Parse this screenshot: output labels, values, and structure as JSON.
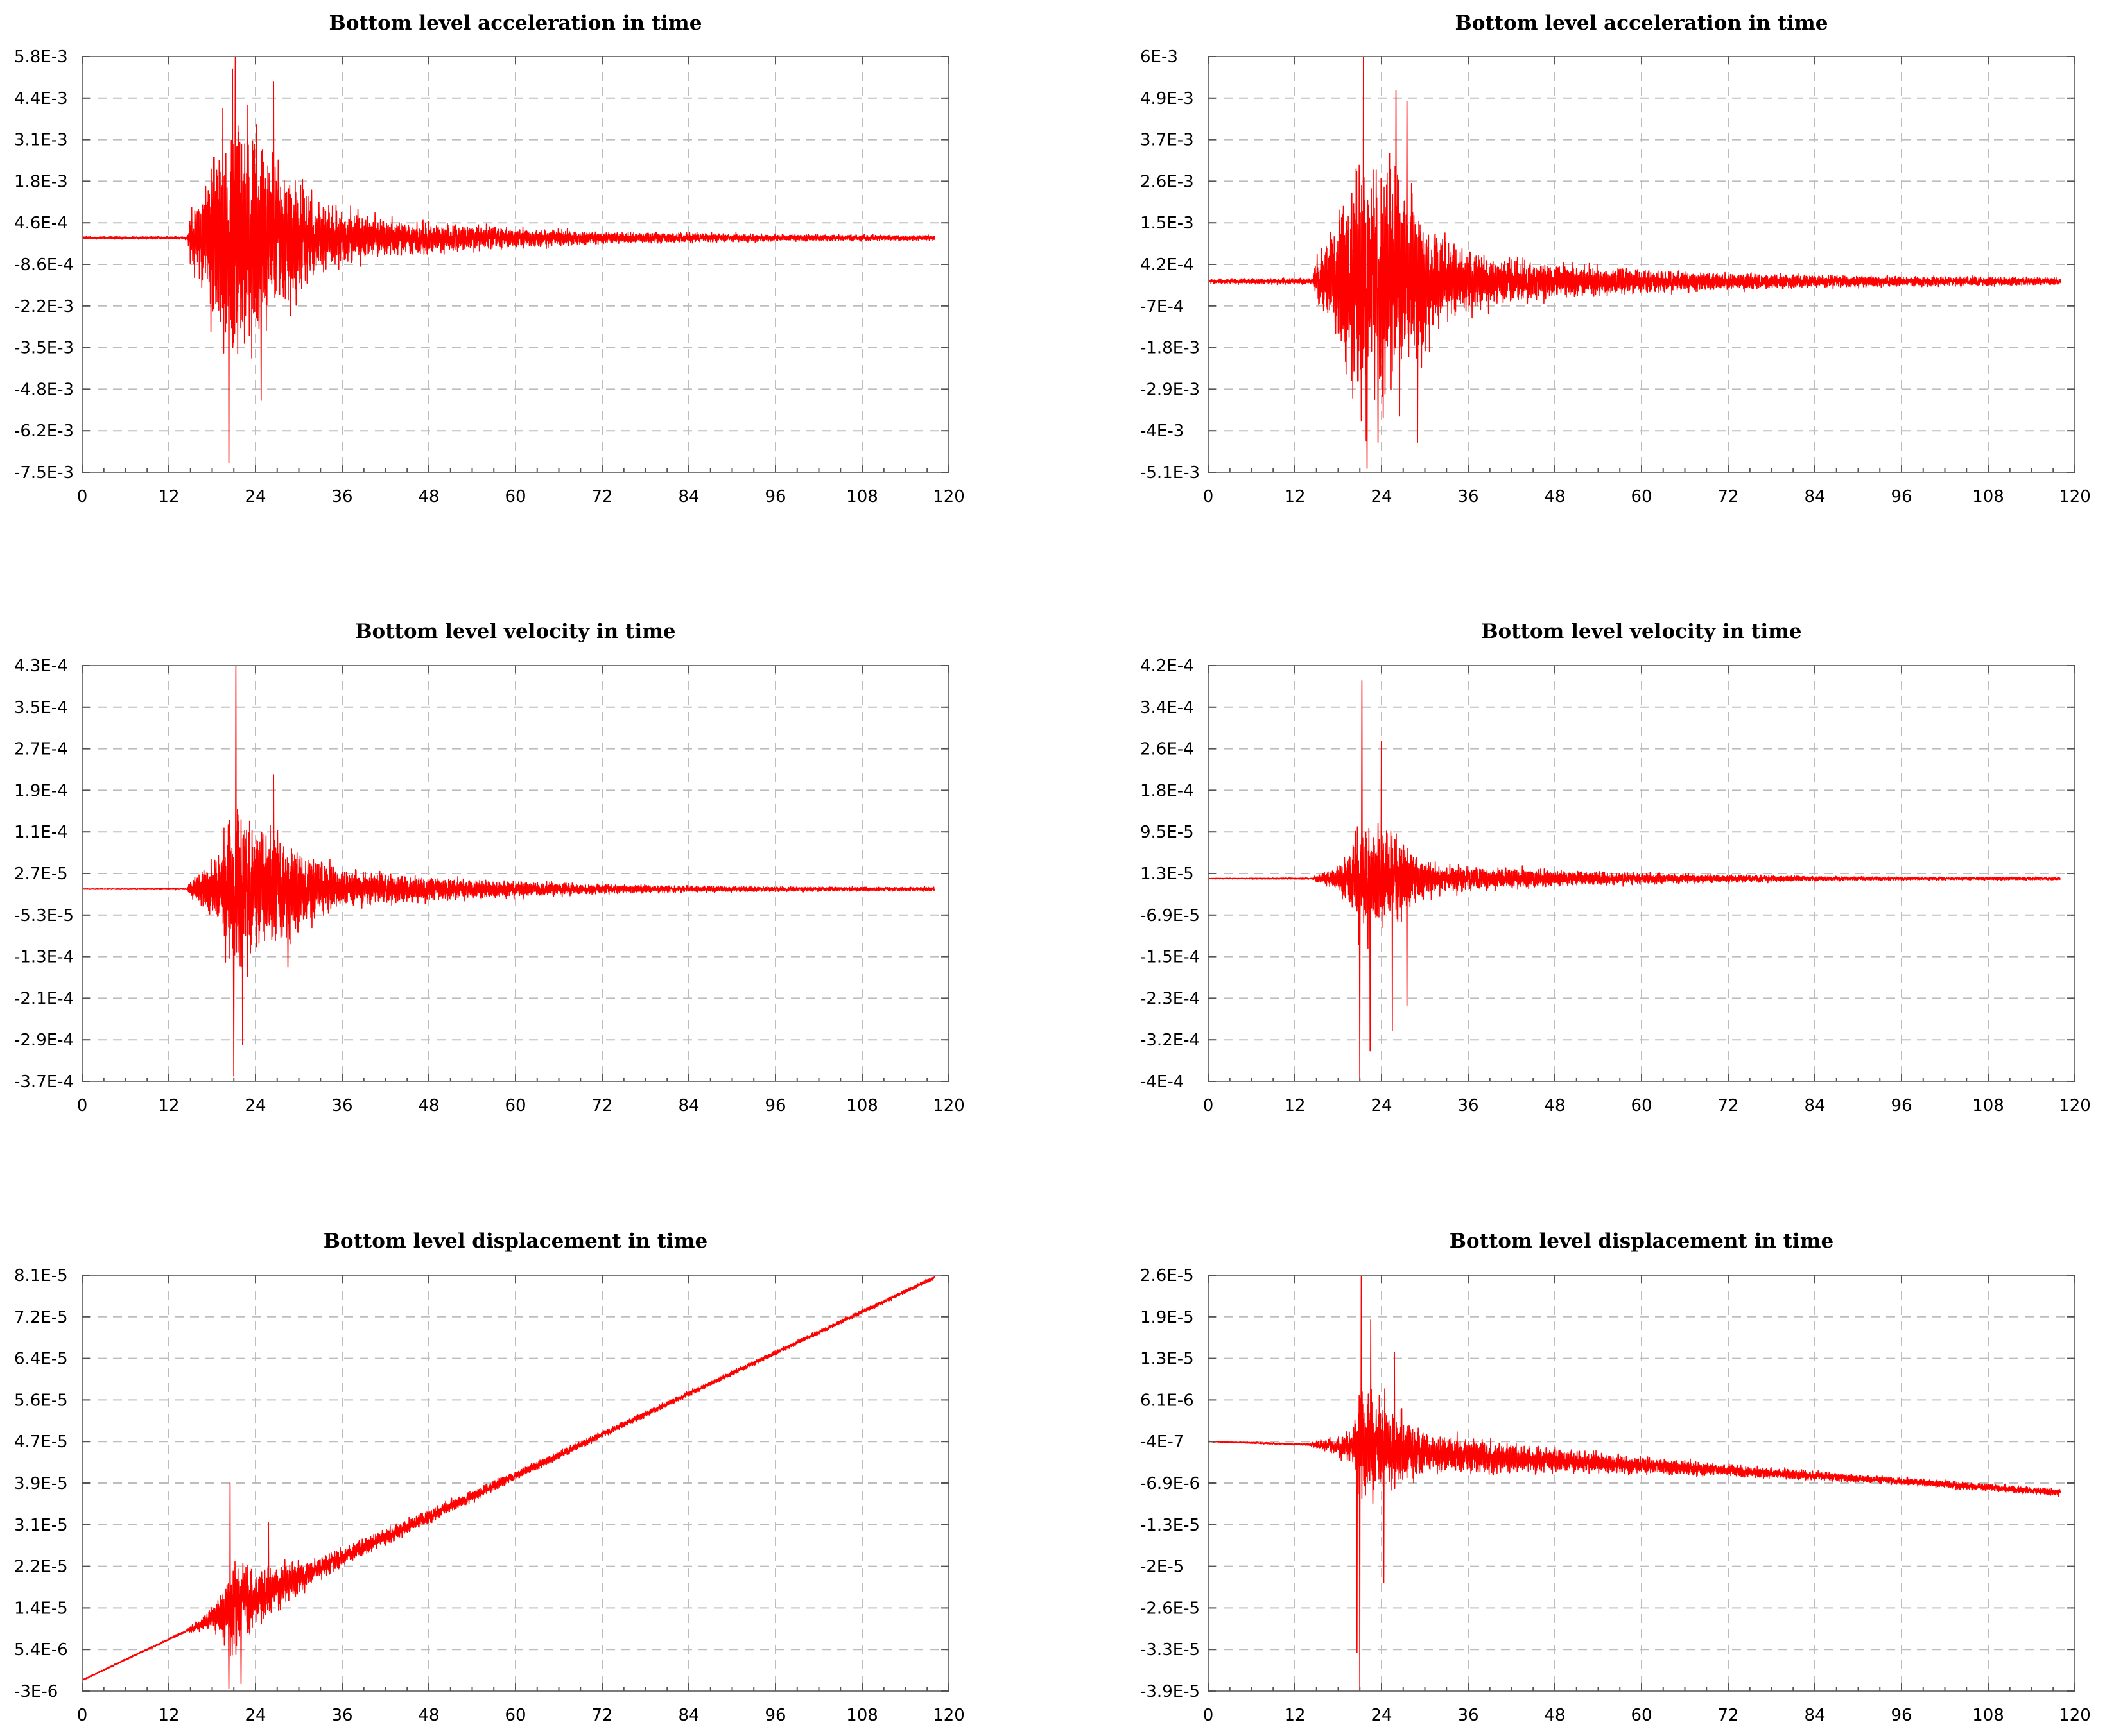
{
  "chart_data": [
    {
      "type": "line",
      "id": "acc-left",
      "title": "Bottom level acceleration in time",
      "xlabel": "",
      "ylabel": "",
      "xlim": [
        0,
        120
      ],
      "ylim": [
        -0.0075,
        0.0058
      ],
      "x_ticks": [
        "0",
        "12",
        "24",
        "36",
        "48",
        "60",
        "72",
        "84",
        "96",
        "108",
        "120"
      ],
      "y_ticks": [
        "5.8E-3",
        "4.4E-3",
        "3.1E-3",
        "1.8E-3",
        "4.6E-4",
        "-8.6E-4",
        "-2.2E-3",
        "-3.5E-3",
        "-4.8E-3",
        "-6.2E-3",
        "-7.5E-3"
      ],
      "grid": true,
      "series": [
        {
          "name": "acceleration",
          "color": "#ff0000",
          "envelope": [
            [
              0,
              5e-05
            ],
            [
              14.5,
              6e-05
            ],
            [
              15,
              0.0012
            ],
            [
              17,
              0.002
            ],
            [
              18,
              0.0037
            ],
            [
              19,
              0.0038
            ],
            [
              20,
              0.0052
            ],
            [
              21.5,
              0.0055
            ],
            [
              23,
              0.0048
            ],
            [
              25,
              0.0038
            ],
            [
              27,
              0.0032
            ],
            [
              29,
              0.0026
            ],
            [
              32,
              0.0016
            ],
            [
              36,
              0.0011
            ],
            [
              40,
              0.0009
            ],
            [
              45,
              0.0007
            ],
            [
              50,
              0.0006
            ],
            [
              60,
              0.0004
            ],
            [
              72,
              0.00025
            ],
            [
              84,
              0.0002
            ],
            [
              96,
              0.00015
            ],
            [
              108,
              0.00012
            ],
            [
              118,
              0.0001
            ]
          ],
          "offset": [
            [
              0,
              0.0
            ],
            [
              118,
              0.0
            ]
          ],
          "peaks": [
            [
              20.3,
              -0.0072
            ],
            [
              21.2,
              0.0058
            ],
            [
              20.8,
              0.0054
            ],
            [
              24.8,
              -0.0052
            ],
            [
              26.5,
              0.005
            ]
          ]
        }
      ]
    },
    {
      "type": "line",
      "id": "acc-right",
      "title": "Bottom level acceleration in time",
      "xlabel": "",
      "ylabel": "",
      "xlim": [
        0,
        120
      ],
      "ylim": [
        -0.0051,
        0.006
      ],
      "x_ticks": [
        "0",
        "12",
        "24",
        "36",
        "48",
        "60",
        "72",
        "84",
        "96",
        "108",
        "120"
      ],
      "y_ticks": [
        "6E-3",
        "4.9E-3",
        "3.7E-3",
        "2.6E-3",
        "1.5E-3",
        "4.2E-4",
        "-7E-4",
        "-1.8E-3",
        "-2.9E-3",
        "-4E-3",
        "-5.1E-3"
      ],
      "grid": true,
      "series": [
        {
          "name": "acceleration",
          "color": "#ff0000",
          "envelope": [
            [
              0,
              8e-05
            ],
            [
              14.5,
              0.0001
            ],
            [
              15,
              0.0009
            ],
            [
              18,
              0.0022
            ],
            [
              20,
              0.0042
            ],
            [
              21,
              0.0048
            ],
            [
              23,
              0.0042
            ],
            [
              25,
              0.0038
            ],
            [
              27,
              0.0036
            ],
            [
              29,
              0.003
            ],
            [
              32,
              0.0016
            ],
            [
              36,
              0.0011
            ],
            [
              40,
              0.0008
            ],
            [
              48,
              0.0006
            ],
            [
              60,
              0.0004
            ],
            [
              72,
              0.0003
            ],
            [
              84,
              0.00022
            ],
            [
              96,
              0.00018
            ],
            [
              108,
              0.00015
            ],
            [
              118,
              0.00012
            ]
          ],
          "offset": [
            [
              0,
              0.0
            ],
            [
              118,
              0.0
            ]
          ],
          "peaks": [
            [
              21.5,
              0.006
            ],
            [
              22,
              -0.005
            ],
            [
              23.5,
              -0.0043
            ],
            [
              26,
              0.0051
            ],
            [
              27.5,
              0.0048
            ],
            [
              29,
              -0.0043
            ]
          ]
        }
      ]
    },
    {
      "type": "line",
      "id": "vel-left",
      "title": "Bottom level velocity in time",
      "xlabel": "",
      "ylabel": "",
      "xlim": [
        0,
        120
      ],
      "ylim": [
        -0.00037,
        0.00043
      ],
      "x_ticks": [
        "0",
        "12",
        "24",
        "36",
        "48",
        "60",
        "72",
        "84",
        "96",
        "108",
        "120"
      ],
      "y_ticks": [
        "4.3E-4",
        "3.5E-4",
        "2.7E-4",
        "1.9E-4",
        "1.1E-4",
        "2.7E-5",
        "-5.3E-5",
        "-1.3E-4",
        "-2.1E-4",
        "-2.9E-4",
        "-3.7E-4"
      ],
      "grid": true,
      "series": [
        {
          "name": "velocity",
          "color": "#ff0000",
          "envelope": [
            [
              0,
              1e-06
            ],
            [
              14.5,
              2e-06
            ],
            [
              15,
              2e-05
            ],
            [
              17,
              5e-05
            ],
            [
              19,
              9e-05
            ],
            [
              20,
              0.00018
            ],
            [
              21,
              0.00022
            ],
            [
              23,
              0.00018
            ],
            [
              25,
              0.00016
            ],
            [
              27,
              0.00014
            ],
            [
              29,
              0.00012
            ],
            [
              32,
              8e-05
            ],
            [
              36,
              5e-05
            ],
            [
              40,
              4e-05
            ],
            [
              48,
              3e-05
            ],
            [
              60,
              2e-05
            ],
            [
              72,
              1.2e-05
            ],
            [
              84,
              8e-06
            ],
            [
              96,
              6e-06
            ],
            [
              118,
              5e-06
            ]
          ],
          "offset": [
            [
              0,
              0.0
            ],
            [
              118,
              0.0
            ]
          ],
          "peaks": [
            [
              21.3,
              0.00043
            ],
            [
              21.0,
              -0.00036
            ],
            [
              22.2,
              -0.0003
            ],
            [
              26.5,
              0.00022
            ],
            [
              28.5,
              -0.00015
            ]
          ]
        }
      ]
    },
    {
      "type": "line",
      "id": "vel-right",
      "title": "Bottom level velocity in time",
      "xlabel": "",
      "ylabel": "",
      "xlim": [
        0,
        120
      ],
      "ylim": [
        -0.0004,
        0.00042
      ],
      "x_ticks": [
        "0",
        "12",
        "24",
        "36",
        "48",
        "60",
        "72",
        "84",
        "96",
        "108",
        "120"
      ],
      "y_ticks": [
        "4.2E-4",
        "3.4E-4",
        "2.6E-4",
        "1.8E-4",
        "9.5E-5",
        "1.3E-5",
        "-6.9E-5",
        "-1.5E-4",
        "-2.3E-4",
        "-3.2E-4",
        "-4E-4"
      ],
      "grid": true,
      "series": [
        {
          "name": "velocity",
          "color": "#ff0000",
          "envelope": [
            [
              0,
              1e-06
            ],
            [
              14.5,
              2e-06
            ],
            [
              15,
              1e-05
            ],
            [
              18,
              3e-05
            ],
            [
              20,
              0.00011
            ],
            [
              21,
              0.00015
            ],
            [
              23,
              0.00014
            ],
            [
              25,
              0.00012
            ],
            [
              27,
              0.0001
            ],
            [
              29,
              6e-05
            ],
            [
              32,
              4e-05
            ],
            [
              36,
              3e-05
            ],
            [
              48,
              2e-05
            ],
            [
              60,
              1.5e-05
            ],
            [
              72,
              1e-05
            ],
            [
              84,
              6e-06
            ],
            [
              96,
              4e-06
            ],
            [
              118,
              4e-06
            ]
          ],
          "offset": [
            [
              0,
              0.0
            ],
            [
              118,
              0.0
            ]
          ],
          "peaks": [
            [
              21.3,
              0.00039
            ],
            [
              21.0,
              -0.0004
            ],
            [
              22.4,
              -0.00034
            ],
            [
              24.0,
              0.00027
            ],
            [
              25.5,
              -0.0003
            ],
            [
              27.5,
              -0.00025
            ]
          ]
        }
      ]
    },
    {
      "type": "line",
      "id": "disp-left",
      "title": "Bottom level displacement in time",
      "xlabel": "",
      "ylabel": "",
      "xlim": [
        0,
        120
      ],
      "ylim": [
        -3e-06,
        8.1e-05
      ],
      "x_ticks": [
        "0",
        "12",
        "24",
        "36",
        "48",
        "60",
        "72",
        "84",
        "96",
        "108",
        "120"
      ],
      "y_ticks": [
        "8.1E-5",
        "7.2E-5",
        "6.4E-5",
        "5.6E-5",
        "4.7E-5",
        "3.9E-5",
        "3.1E-5",
        "2.2E-5",
        "1.4E-5",
        "5.4E-6",
        "-3E-6"
      ],
      "grid": true,
      "series": [
        {
          "name": "displacement",
          "color": "#ff0000",
          "envelope": [
            [
              0,
              2e-07
            ],
            [
              14.5,
              3e-07
            ],
            [
              15,
              8e-07
            ],
            [
              17,
              2e-06
            ],
            [
              19,
              4.5e-06
            ],
            [
              20,
              1.2e-05
            ],
            [
              21,
              1.3e-05
            ],
            [
              23,
              9e-06
            ],
            [
              25,
              8e-06
            ],
            [
              27,
              6e-06
            ],
            [
              29,
              5e-06
            ],
            [
              32,
              3e-06
            ],
            [
              36,
              2.5e-06
            ],
            [
              48,
              1.8e-06
            ],
            [
              60,
              1.2e-06
            ],
            [
              72,
              9e-07
            ],
            [
              84,
              7e-07
            ],
            [
              96,
              6e-07
            ],
            [
              118,
              5e-07
            ]
          ],
          "offset": [
            [
              0,
              -8e-07
            ],
            [
              118,
              8.05e-05
            ]
          ],
          "peaks": [
            [
              20.5,
              3.9e-05
            ],
            [
              20.3,
              -2.5e-06
            ],
            [
              22.0,
              -1.5e-06
            ],
            [
              25.8,
              3.1e-05
            ]
          ]
        }
      ]
    },
    {
      "type": "line",
      "id": "disp-right",
      "title": "Bottom level displacement in time",
      "xlabel": "",
      "ylabel": "",
      "xlim": [
        0,
        120
      ],
      "ylim": [
        -3.9e-05,
        2.6e-05
      ],
      "x_ticks": [
        "0",
        "12",
        "24",
        "36",
        "48",
        "60",
        "72",
        "84",
        "96",
        "108",
        "120"
      ],
      "y_ticks": [
        "2.6E-5",
        "1.9E-5",
        "1.3E-5",
        "6.1E-6",
        "-4E-7",
        "-6.9E-6",
        "-1.3E-5",
        "-2E-5",
        "-2.6E-5",
        "-3.3E-5",
        "-3.9E-5"
      ],
      "grid": true,
      "series": [
        {
          "name": "displacement",
          "color": "#ff0000",
          "envelope": [
            [
              0,
              1e-07
            ],
            [
              14,
              2e-07
            ],
            [
              15,
              8e-07
            ],
            [
              18,
              2e-06
            ],
            [
              20,
              4e-06
            ],
            [
              21,
              1.2e-05
            ],
            [
              23,
              1.2e-05
            ],
            [
              25,
              9e-06
            ],
            [
              27,
              7e-06
            ],
            [
              29,
              5e-06
            ],
            [
              32,
              4e-06
            ],
            [
              36,
              3.5e-06
            ],
            [
              48,
              2.5e-06
            ],
            [
              60,
              1.8e-06
            ],
            [
              72,
              1.2e-06
            ],
            [
              84,
              9e-07
            ],
            [
              96,
              8e-07
            ],
            [
              118,
              7e-07
            ]
          ],
          "offset": [
            [
              0,
              0.0
            ],
            [
              15,
              -5e-07
            ],
            [
              40,
              -2.5e-06
            ],
            [
              72,
              -4.5e-06
            ],
            [
              96,
              -6.2e-06
            ],
            [
              118,
              -8e-06
            ]
          ],
          "peaks": [
            [
              21.2,
              2.6e-05
            ],
            [
              21.0,
              -3.9e-05
            ],
            [
              20.6,
              -3.3e-05
            ],
            [
              22.5,
              1.9e-05
            ],
            [
              24.3,
              -2.2e-05
            ],
            [
              25.8,
              1.4e-05
            ]
          ]
        }
      ]
    }
  ]
}
